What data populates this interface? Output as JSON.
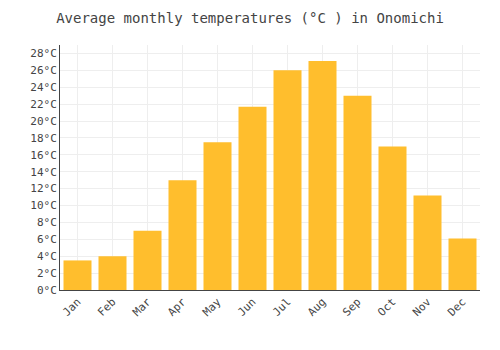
{
  "chart_data": {
    "type": "bar",
    "title": "Average monthly temperatures (°C ) in Onomichi",
    "categories": [
      "Jan",
      "Feb",
      "Mar",
      "Apr",
      "May",
      "Jun",
      "Jul",
      "Aug",
      "Sep",
      "Oct",
      "Nov",
      "Dec"
    ],
    "values": [
      3.5,
      4.0,
      7.0,
      13.0,
      17.5,
      21.7,
      26.0,
      27.1,
      23.0,
      17.0,
      11.2,
      6.1
    ],
    "color": "#FFBE2D",
    "ylim": [
      0,
      29
    ],
    "yticks": [
      {
        "value": 0,
        "label": "0°C"
      },
      {
        "value": 2,
        "label": "2°C"
      },
      {
        "value": 4,
        "label": "4°C"
      },
      {
        "value": 6,
        "label": "6°C"
      },
      {
        "value": 8,
        "label": "8°C"
      },
      {
        "value": 10,
        "label": "10°C"
      },
      {
        "value": 12,
        "label": "12°C"
      },
      {
        "value": 14,
        "label": "14°C"
      },
      {
        "value": 16,
        "label": "16°C"
      },
      {
        "value": 18,
        "label": "18°C"
      },
      {
        "value": 20,
        "label": "20°C"
      },
      {
        "value": 22,
        "label": "22°C"
      },
      {
        "value": 24,
        "label": "24°C"
      },
      {
        "value": 26,
        "label": "26°C"
      },
      {
        "value": 28,
        "label": "28°C"
      }
    ],
    "grid": true
  }
}
